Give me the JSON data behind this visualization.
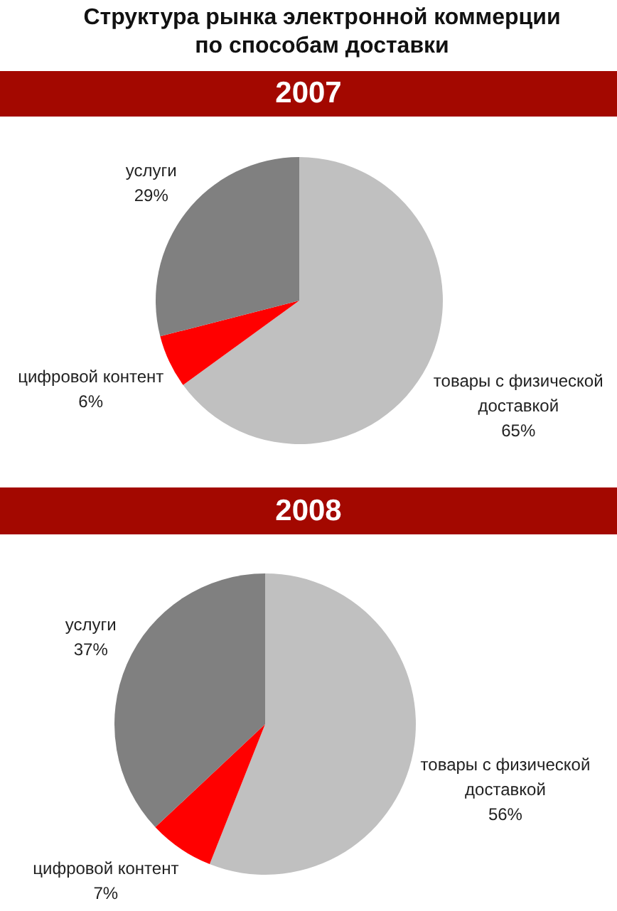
{
  "chart_data": [
    {
      "type": "pie",
      "title": "Структура рынка электронной коммерции по способам доставки",
      "subtitle": "2007",
      "categories": [
        "товары с физической доставкой",
        "цифровой контент",
        "услуги"
      ],
      "values": [
        65,
        6,
        29
      ],
      "colors": [
        "#c0c0c0",
        "#ff0000",
        "#808080"
      ],
      "value_labels": [
        "65%",
        "6%",
        "29%"
      ]
    },
    {
      "type": "pie",
      "title": "2008",
      "categories": [
        "товары с физической доставкой",
        "цифровой контент",
        "услуги"
      ],
      "values": [
        56,
        7,
        37
      ],
      "colors": [
        "#c0c0c0",
        "#ff0000",
        "#808080"
      ],
      "value_labels": [
        "56%",
        "7%",
        "37%"
      ]
    }
  ]
}
